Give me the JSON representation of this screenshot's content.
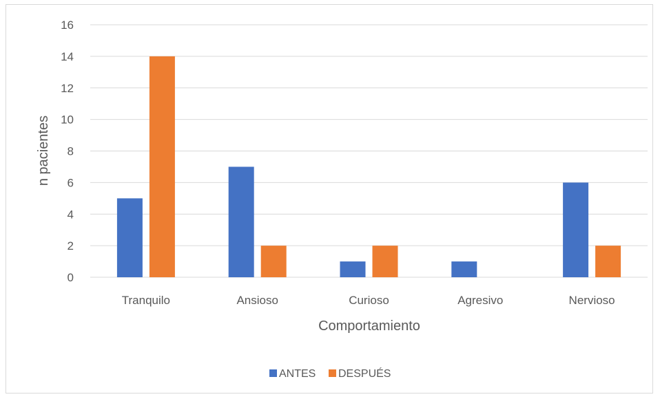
{
  "chart_data": {
    "type": "bar",
    "title": "",
    "xlabel": "Comportamiento",
    "ylabel": "n pacientes",
    "ylim": [
      0,
      16
    ],
    "yticks": [
      0,
      2,
      4,
      6,
      8,
      10,
      12,
      14,
      16
    ],
    "grid": true,
    "legend_position": "bottom",
    "categories": [
      "Tranquilo",
      "Ansioso",
      "Curioso",
      "Agresivo",
      "Nervioso"
    ],
    "series": [
      {
        "name": "ANTES",
        "color": "#4472C4",
        "values": [
          5,
          7,
          1,
          1,
          6
        ]
      },
      {
        "name": "DESPUÉS",
        "color": "#ED7D31",
        "values": [
          14,
          2,
          2,
          0,
          2
        ]
      }
    ]
  }
}
